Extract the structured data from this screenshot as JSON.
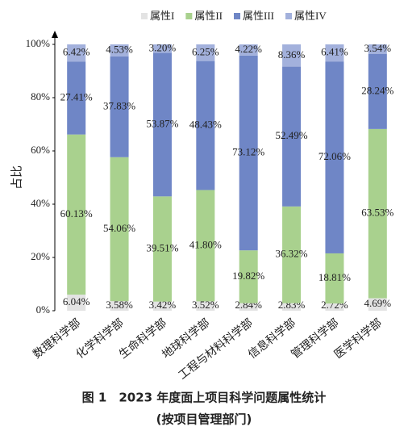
{
  "chart_data": {
    "type": "bar",
    "stacked": true,
    "title": "图 1　2023 年度面上项目科学问题属性统计",
    "subtitle": "(按项目管理部门)",
    "y_label": "占比",
    "categories": [
      "数理科学部",
      "化学科学部",
      "生命科学部",
      "地球科学部",
      "工程与材料科学部",
      "信息科学部",
      "管理科学部",
      "医学科学部"
    ],
    "series": [
      {
        "name": "属性I",
        "color": "#e3e3e3",
        "values": [
          6.04,
          3.58,
          3.42,
          3.52,
          2.84,
          2.83,
          2.72,
          4.69
        ],
        "value_labels": [
          "6.04%",
          "3.58%",
          "3.42%",
          "3.52%",
          "2.84%",
          "2.83%",
          "2.72%",
          "4.69%"
        ]
      },
      {
        "name": "属性II",
        "color": "#a9d18e",
        "values": [
          60.13,
          54.06,
          39.51,
          41.8,
          19.82,
          36.32,
          18.81,
          63.53
        ],
        "value_labels": [
          "60.13%",
          "54.06%",
          "39.51%",
          "41.80%",
          "19.82%",
          "36.32%",
          "18.81%",
          "63.53%"
        ]
      },
      {
        "name": "属性III",
        "color": "#6f86c6",
        "values": [
          27.41,
          37.83,
          53.87,
          48.43,
          73.12,
          52.49,
          72.06,
          28.24
        ],
        "value_labels": [
          "27.41%",
          "37.83%",
          "53.87%",
          "48.43%",
          "73.12%",
          "52.49%",
          "72.06%",
          "28.24%"
        ]
      },
      {
        "name": "属性IV",
        "color": "#a3b1dc",
        "values": [
          6.42,
          4.53,
          3.2,
          6.25,
          4.22,
          8.36,
          6.41,
          3.54
        ],
        "value_labels": [
          "6.42%",
          "4.53%",
          "3.20%",
          "6.25%",
          "4.22%",
          "8.36%",
          "6.41%",
          "3.54%"
        ]
      }
    ],
    "ylim": [
      0,
      100
    ],
    "yticks": [
      {
        "value": 0,
        "label": "0%"
      },
      {
        "value": 20,
        "label": "20%"
      },
      {
        "value": 40,
        "label": "40%"
      },
      {
        "value": 60,
        "label": "60%"
      },
      {
        "value": 80,
        "label": "80%"
      },
      {
        "value": 100,
        "label": "100%"
      }
    ],
    "legend": "top"
  }
}
